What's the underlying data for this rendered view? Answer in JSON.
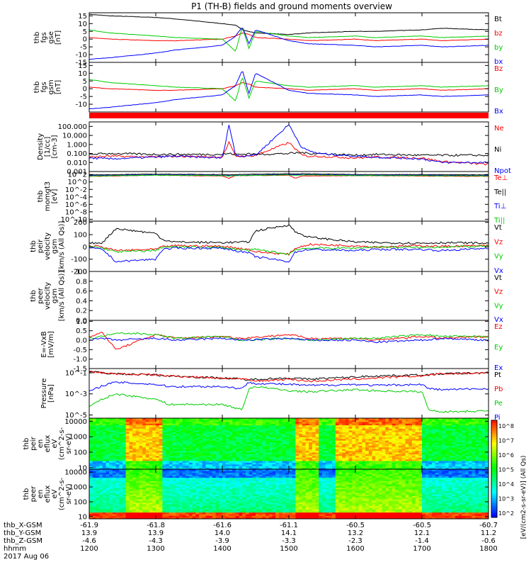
{
  "title": "P1 (TH-B) fields and ground moments overview",
  "footer": {
    "rows": [
      {
        "label": "thb_X-GSM",
        "values": [
          "-61.9",
          "-61.8",
          "-61.6",
          "-61.1",
          "-60.5",
          "-60.5",
          "-60.7"
        ]
      },
      {
        "label": "thb_Y-GSM",
        "values": [
          "13.9",
          "13.9",
          "14.0",
          "14.1",
          "13.2",
          "12.1",
          "11.2"
        ]
      },
      {
        "label": "thb_Z-GSM",
        "values": [
          "-4.6",
          "-4.3",
          "-3.9",
          "-3.3",
          "-2.3",
          "-1.4",
          "-0.6"
        ]
      },
      {
        "label": "hhmm",
        "values": [
          "1200",
          "1300",
          "1400",
          "1500",
          "1600",
          "1700",
          "1800"
        ]
      }
    ],
    "date": "2017 Aug 06"
  },
  "colorbar": {
    "ticks": [
      "10^8",
      "10^7",
      "10^6",
      "10^5",
      "10^4",
      "10^3",
      "10^2"
    ],
    "label": "[eV/(cm2-s-sr-eV)] (All Qs)"
  },
  "colors": {
    "black": "#000000",
    "red": "#ff0000",
    "green": "#00cc00",
    "blue": "#0000ff"
  },
  "chart_data": [
    {
      "type": "line",
      "panel": "fgs_gse",
      "ylabel": [
        "thb",
        "fgs",
        "gse",
        "[nT]"
      ],
      "ylim": [
        -15,
        17
      ],
      "ticks": [
        {
          "v": 15,
          "t": "15"
        },
        {
          "v": 10,
          "t": "10"
        },
        {
          "v": 5,
          "t": "5"
        },
        {
          "v": 0,
          "t": "0"
        },
        {
          "v": -5,
          "t": "-5"
        },
        {
          "v": -10,
          "t": "-10"
        },
        {
          "v": -15,
          "t": "-15"
        }
      ],
      "x": [
        1200,
        1230,
        1300,
        1330,
        1400,
        1420,
        1430,
        1440,
        1450,
        1500,
        1530,
        1600,
        1630,
        1700,
        1730,
        1800
      ],
      "series": [
        {
          "name": "Bt",
          "color": "#000000",
          "values": [
            16,
            15,
            14,
            13,
            10,
            9,
            6,
            5,
            4,
            3,
            4,
            5,
            5,
            6,
            7,
            6
          ]
        },
        {
          "name": "bz",
          "color": "#ff0000",
          "values": [
            1,
            0,
            -1,
            -1,
            0,
            2,
            4,
            3,
            1,
            0,
            -1,
            0,
            -1,
            0,
            -1,
            0
          ]
        },
        {
          "name": "by",
          "color": "#00cc00",
          "values": [
            6,
            4,
            2,
            1,
            0,
            -8,
            8,
            -6,
            5,
            2,
            1,
            2,
            1,
            2,
            1,
            2
          ]
        },
        {
          "name": "bx",
          "color": "#0000ff",
          "values": [
            -13,
            -12,
            -9,
            -7,
            -4,
            2,
            8,
            -3,
            6,
            -1,
            -3,
            -4,
            -5,
            -4,
            -5,
            -4
          ]
        }
      ]
    },
    {
      "type": "line",
      "panel": "fgs_gsm",
      "ylabel": [
        "thb",
        "fgs",
        "gsm",
        "[nT]"
      ],
      "ylim": [
        -15,
        17
      ],
      "ticks": [
        {
          "v": 15,
          "t": "15"
        },
        {
          "v": 10,
          "t": "10"
        },
        {
          "v": 5,
          "t": "5"
        },
        {
          "v": 0,
          "t": "0"
        },
        {
          "v": -5,
          "t": "-5"
        },
        {
          "v": -10,
          "t": "-10"
        }
      ],
      "x": [
        1200,
        1230,
        1300,
        1330,
        1400,
        1420,
        1430,
        1440,
        1450,
        1500,
        1530,
        1600,
        1630,
        1700,
        1730,
        1800
      ],
      "series": [
        {
          "name": "Bz",
          "color": "#ff0000",
          "values": [
            1,
            0,
            -1,
            -1,
            0,
            2,
            4,
            3,
            1,
            0,
            -1,
            0,
            -1,
            0,
            -1,
            0
          ]
        },
        {
          "name": "By",
          "color": "#00cc00",
          "values": [
            6,
            4,
            2,
            1,
            0,
            -8,
            8,
            -6,
            5,
            2,
            1,
            2,
            1,
            2,
            1,
            2
          ]
        },
        {
          "name": "Bx",
          "color": "#0000ff",
          "values": [
            -13,
            -12,
            -9,
            -7,
            -4,
            2,
            12,
            -3,
            10,
            -1,
            -3,
            -4,
            -5,
            -4,
            -5,
            -4
          ]
        }
      ]
    },
    {
      "type": "line",
      "panel": "density",
      "log": true,
      "ylabel": [
        "Density",
        "[1/cc]",
        "[cm-3]"
      ],
      "ylim": [
        -3,
        2.5
      ],
      "ticks": [
        {
          "v": 2,
          "t": "100.000"
        },
        {
          "v": 1,
          "t": "10.000"
        },
        {
          "v": 0,
          "t": "1.000"
        },
        {
          "v": -1,
          "t": "0.100"
        },
        {
          "v": -2,
          "t": "0.010"
        },
        {
          "v": -3,
          "t": "0.001"
        }
      ],
      "x": [
        1200,
        1230,
        1300,
        1330,
        1400,
        1410,
        1420,
        1430,
        1440,
        1450,
        1500,
        1520,
        1530,
        1545,
        1600,
        1630,
        1700,
        1730,
        1800
      ],
      "series": [
        {
          "name": "Ne",
          "color": "#ff0000",
          "values": [
            -1.4,
            -1.3,
            -1.4,
            -1.3,
            -1.4,
            0.2,
            -1.3,
            -1.3,
            -1.3,
            -1.2,
            0.2,
            -1.2,
            -1.3,
            -1.3,
            -1.5,
            -1.4,
            -1.5,
            -1.9,
            -2.2
          ]
        },
        {
          "name": "Ni",
          "color": "#000000",
          "values": [
            -1.1,
            -1.0,
            -1.1,
            -1.1,
            -1.1,
            -1.0,
            -1.1,
            -1.1,
            -1.0,
            -1.1,
            -1.0,
            -0.9,
            -1.0,
            -1.0,
            -1.2,
            -1.1,
            -1.2,
            -1.2,
            -1.2
          ]
        },
        {
          "name": "Npot",
          "color": "#0000ff",
          "values": [
            -1.5,
            -1.6,
            -1.4,
            -1.3,
            -1.5,
            2.2,
            -1.2,
            -1.3,
            -1.2,
            -1.2,
            2.2,
            -0.4,
            -0.7,
            -1.0,
            -1.3,
            -1.4,
            -1.6,
            -2.0,
            -2.0
          ]
        }
      ]
    },
    {
      "type": "line",
      "panel": "moments3",
      "log": true,
      "ylabel": [
        "thb",
        "momgt3",
        "[eV]"
      ],
      "ylim": [
        -10.5,
        2.8
      ],
      "ticks": [
        {
          "v": 2,
          "t": "10^2"
        },
        {
          "v": 0,
          "t": "10^0"
        },
        {
          "v": -2,
          "t": "10^-2"
        },
        {
          "v": -4,
          "t": "10^-4"
        },
        {
          "v": -6,
          "t": "10^-6"
        },
        {
          "v": -8,
          "t": "10^-8"
        },
        {
          "v": -10,
          "t": "10^-10"
        }
      ],
      "x": [
        1200,
        1300,
        1400,
        1410,
        1420,
        1500,
        1510,
        1520,
        1600,
        1700,
        1800
      ],
      "series": [
        {
          "name": "Te⊥",
          "color": "#ff0000",
          "values": [
            1.5,
            1.8,
            1.6,
            1.0,
            1.7,
            1.8,
            1.0,
            1.6,
            1.7,
            1.6,
            1.5
          ]
        },
        {
          "name": "Te||",
          "color": "#000000",
          "values": [
            1.9,
            2.1,
            2.0,
            1.9,
            2.0,
            2.2,
            2.1,
            2.2,
            2.0,
            2.0,
            1.9
          ]
        },
        {
          "name": "Ti⊥",
          "color": "#0000ff",
          "values": [
            1.7,
            1.9,
            1.8,
            1.7,
            1.8,
            2.0,
            1.9,
            2.0,
            1.8,
            1.8,
            1.7
          ]
        },
        {
          "name": "Ti||",
          "color": "#00cc00",
          "values": [
            1.6,
            1.8,
            1.7,
            1.6,
            1.7,
            1.9,
            1.8,
            1.9,
            1.7,
            1.7,
            1.6
          ]
        }
      ]
    },
    {
      "type": "line",
      "panel": "peir_velocity",
      "ylabel": [
        "thb",
        "peir",
        "velocity",
        "gsm",
        "[km/s (All Qs)]"
      ],
      "ylim": [
        -200,
        210
      ],
      "ticks": [
        {
          "v": 200,
          "t": "200"
        },
        {
          "v": 100,
          "t": "100"
        },
        {
          "v": 0,
          "t": "0"
        },
        {
          "v": -100,
          "t": "-100"
        },
        {
          "v": -200,
          "t": "-200"
        }
      ],
      "x": [
        1200,
        1220,
        1240,
        1300,
        1310,
        1330,
        1400,
        1440,
        1450,
        1500,
        1510,
        1530,
        1600,
        1630,
        1700,
        1730,
        1800
      ],
      "series": [
        {
          "name": "Vt",
          "color": "#000000",
          "values": [
            30,
            35,
            150,
            110,
            60,
            40,
            35,
            40,
            130,
            180,
            120,
            80,
            40,
            35,
            30,
            35,
            30
          ]
        },
        {
          "name": "Vz",
          "color": "#ff0000",
          "values": [
            10,
            0,
            -30,
            -20,
            0,
            10,
            5,
            -20,
            -40,
            -60,
            -10,
            20,
            10,
            0,
            10,
            5,
            10
          ]
        },
        {
          "name": "Vy",
          "color": "#00cc00",
          "values": [
            5,
            -10,
            -40,
            -30,
            0,
            0,
            -5,
            -30,
            -20,
            -60,
            -20,
            -10,
            -10,
            0,
            -5,
            0,
            5
          ]
        },
        {
          "name": "Vx",
          "color": "#0000ff",
          "values": [
            -10,
            -20,
            -120,
            -100,
            -20,
            -10,
            -10,
            -50,
            -80,
            -120,
            -40,
            -20,
            -30,
            -20,
            -20,
            -30,
            -10
          ]
        }
      ]
    },
    {
      "type": "line",
      "panel": "peer_velocity",
      "ylabel": [
        "thb",
        "peer",
        "velocity",
        "gsm",
        "[km/s (All Qs)]"
      ],
      "ylim": [
        0,
        1
      ],
      "ticks": [
        {
          "v": 1.0,
          "t": "1.0"
        },
        {
          "v": 0.8,
          "t": "0.8"
        },
        {
          "v": 0.6,
          "t": "0.6"
        },
        {
          "v": 0.4,
          "t": "0.4"
        },
        {
          "v": 0.2,
          "t": "0.2"
        },
        {
          "v": 0.0,
          "t": "0.0"
        }
      ],
      "x": [],
      "series": [
        {
          "name": "Vt",
          "color": "#000000",
          "values": []
        },
        {
          "name": "Vz",
          "color": "#ff0000",
          "values": []
        },
        {
          "name": "Vy",
          "color": "#00cc00",
          "values": []
        },
        {
          "name": "Vx",
          "color": "#0000ff",
          "values": []
        }
      ]
    },
    {
      "type": "line",
      "panel": "efield",
      "ylabel": [
        "E=-VxB",
        "[mV/m]"
      ],
      "ylim": [
        -1.5,
        1.05
      ],
      "ticks": [
        {
          "v": 1.0,
          "t": "1.0"
        },
        {
          "v": 0.5,
          "t": "0.5"
        },
        {
          "v": 0.0,
          "t": "0.0"
        },
        {
          "v": -0.5,
          "t": "-0.5"
        },
        {
          "v": -1.0,
          "t": "-1.0"
        },
        {
          "v": -1.5,
          "t": "-1.5"
        }
      ],
      "x": [
        1200,
        1220,
        1240,
        1300,
        1330,
        1400,
        1430,
        1500,
        1530,
        1600,
        1630,
        1700,
        1730,
        1800
      ],
      "series": [
        {
          "name": "Ez",
          "color": "#ff0000",
          "values": [
            0.2,
            0.4,
            -0.5,
            0.3,
            0.1,
            0.2,
            0.1,
            0.3,
            0.1,
            0.1,
            0.0,
            0.2,
            0.1,
            0.2
          ]
        },
        {
          "name": "Ey",
          "color": "#00cc00",
          "values": [
            0.1,
            0.2,
            0.4,
            0.3,
            0.1,
            0.2,
            0.0,
            0.1,
            0.0,
            0.1,
            0.1,
            0.3,
            0.2,
            0.2
          ]
        },
        {
          "name": "Ex",
          "color": "#0000ff",
          "values": [
            0.0,
            0.1,
            0.0,
            0.1,
            0.0,
            0.1,
            0.0,
            0.1,
            0.0,
            0.0,
            -0.1,
            0.0,
            0.1,
            0.0
          ]
        }
      ]
    },
    {
      "type": "line",
      "panel": "pressure",
      "log": true,
      "ylabel": [
        "Pressure",
        "[nPa]"
      ],
      "ylim": [
        -5.3,
        -0.6
      ],
      "ticks": [
        {
          "v": -1,
          "t": "10^-1"
        },
        {
          "v": -3,
          "t": "10^-3"
        },
        {
          "v": -5,
          "t": "10^-5"
        }
      ],
      "x": [
        1200,
        1220,
        1240,
        1300,
        1320,
        1400,
        1430,
        1440,
        1450,
        1500,
        1530,
        1600,
        1630,
        1700,
        1710,
        1730,
        1800
      ],
      "series": [
        {
          "name": "Pt",
          "color": "#000000",
          "values": [
            -0.9,
            -1.0,
            -1.1,
            -1.2,
            -1.3,
            -1.5,
            -1.6,
            -1.7,
            -1.6,
            -1.5,
            -1.6,
            -1.4,
            -1.3,
            -1.2,
            -1.2,
            -1.1,
            -1.0
          ]
        },
        {
          "name": "Pb",
          "color": "#ff0000",
          "values": [
            -0.9,
            -1.0,
            -1.1,
            -1.2,
            -1.3,
            -1.5,
            -1.6,
            -1.7,
            -1.8,
            -1.6,
            -1.8,
            -1.6,
            -1.5,
            -1.3,
            -1.2,
            -1.1,
            -1.0
          ]
        },
        {
          "name": "Pe",
          "color": "#00cc00",
          "values": [
            -4.2,
            -3.5,
            -3.0,
            -3.5,
            -4.0,
            -4.0,
            -4.5,
            -2.5,
            -2.3,
            -2.7,
            -2.8,
            -2.6,
            -2.7,
            -2.8,
            -4.5,
            -4.7,
            -4.6
          ]
        },
        {
          "name": "Pi",
          "color": "#0000ff",
          "values": [
            -2.8,
            -2.2,
            -1.9,
            -2.1,
            -2.3,
            -2.3,
            -2.5,
            -1.9,
            -2.0,
            -2.1,
            -2.2,
            -2.1,
            -2.2,
            -2.1,
            -2.5,
            -2.6,
            -2.5
          ]
        }
      ]
    },
    {
      "type": "heatmap",
      "panel": "peir_eflux",
      "ylabel": [
        "thb",
        "peir",
        "en",
        "eflux",
        "eV",
        "(cm^2-s-",
        "sr-eV)"
      ],
      "log": true,
      "ylim": [
        0.9,
        4.2
      ],
      "ticks": [
        {
          "v": 4,
          "t": "10000"
        },
        {
          "v": 3,
          "t": "1000"
        },
        {
          "v": 2,
          "t": "100"
        },
        {
          "v": 1,
          "t": "10"
        }
      ]
    },
    {
      "type": "heatmap",
      "panel": "peer_eflux",
      "ylabel": [
        "thb",
        "peer",
        "en",
        "eflux",
        "eV",
        "(cm^2-s-",
        "sr-eV)"
      ],
      "log": true,
      "ylim": [
        0.85,
        4.2
      ],
      "ticks": [
        {
          "v": 4,
          "t": "10000"
        },
        {
          "v": 3,
          "t": "1000"
        },
        {
          "v": 2,
          "t": "100"
        },
        {
          "v": 1,
          "t": "10"
        }
      ]
    }
  ]
}
